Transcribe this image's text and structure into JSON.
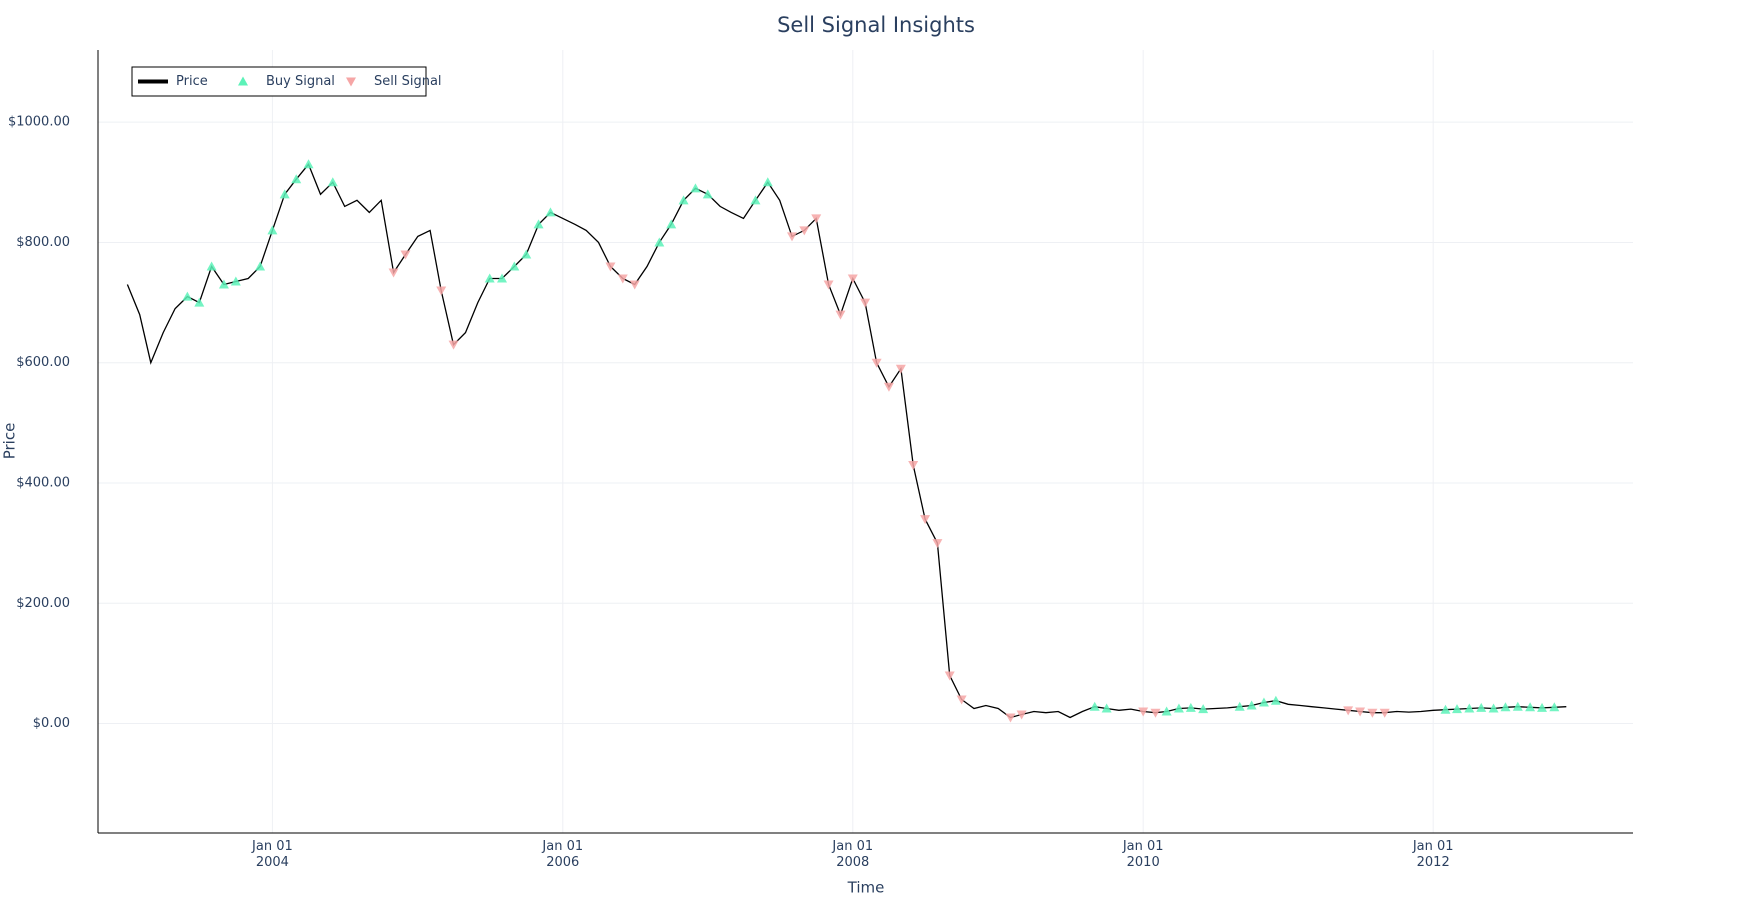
{
  "chart_data": {
    "type": "line",
    "title": "Sell Signal Insights",
    "xlabel": "Time",
    "ylabel": "Price",
    "xlim": [
      "2002-10-19",
      "2013-05-18"
    ],
    "xticks": [
      {
        "value": "2004-01-01",
        "label": "Jan 01\n2004"
      },
      {
        "value": "2006-01-01",
        "label": "Jan 01\n2006"
      },
      {
        "value": "2008-01-01",
        "label": "Jan 01\n2008"
      },
      {
        "value": "2010-01-01",
        "label": "Jan 01\n2010"
      },
      {
        "value": "2012-01-01",
        "label": "Jan 01\n2012"
      }
    ],
    "ylim": [
      -182,
      1120
    ],
    "yticks": [
      {
        "value": 0,
        "label": "$0.00"
      },
      {
        "value": 200,
        "label": "$200.00"
      },
      {
        "value": 400,
        "label": "$400.00"
      },
      {
        "value": 600,
        "label": "$600.00"
      },
      {
        "value": 800,
        "label": "$800.00"
      },
      {
        "value": 1000,
        "label": "$1000.00"
      }
    ],
    "grid": true,
    "legend": "top-left",
    "series": [
      {
        "name": "Price",
        "mode": "lines",
        "color": "#000000",
        "x": [
          "2003-01",
          "2003-02",
          "2003-03",
          "2003-04",
          "2003-05",
          "2003-06",
          "2003-07",
          "2003-08",
          "2003-09",
          "2003-10",
          "2003-11",
          "2003-12",
          "2004-01",
          "2004-02",
          "2004-03",
          "2004-04",
          "2004-05",
          "2004-06",
          "2004-07",
          "2004-08",
          "2004-09",
          "2004-10",
          "2004-11",
          "2004-12",
          "2005-01",
          "2005-02",
          "2005-03",
          "2005-04",
          "2005-05",
          "2005-06",
          "2005-07",
          "2005-08",
          "2005-09",
          "2005-10",
          "2005-11",
          "2005-12",
          "2006-01",
          "2006-02",
          "2006-03",
          "2006-04",
          "2006-05",
          "2006-06",
          "2006-07",
          "2006-08",
          "2006-09",
          "2006-10",
          "2006-11",
          "2006-12",
          "2007-01",
          "2007-02",
          "2007-03",
          "2007-04",
          "2007-05",
          "2007-06",
          "2007-07",
          "2007-08",
          "2007-09",
          "2007-10",
          "2007-11",
          "2007-12",
          "2008-01",
          "2008-02",
          "2008-03",
          "2008-04",
          "2008-05",
          "2008-06",
          "2008-07",
          "2008-08",
          "2008-09",
          "2008-10",
          "2008-11",
          "2008-12",
          "2009-01",
          "2009-02",
          "2009-03",
          "2009-04",
          "2009-05",
          "2009-06",
          "2009-07",
          "2009-08",
          "2009-09",
          "2009-10",
          "2009-11",
          "2009-12",
          "2010-01",
          "2010-02",
          "2010-03",
          "2010-04",
          "2010-05",
          "2010-06",
          "2010-07",
          "2010-08",
          "2010-09",
          "2010-10",
          "2010-11",
          "2010-12",
          "2011-01",
          "2011-02",
          "2011-03",
          "2011-04",
          "2011-05",
          "2011-06",
          "2011-07",
          "2011-08",
          "2011-09",
          "2011-10",
          "2011-11",
          "2011-12",
          "2012-01",
          "2012-02",
          "2012-03",
          "2012-04",
          "2012-05",
          "2012-06",
          "2012-07",
          "2012-08",
          "2012-09",
          "2012-10",
          "2012-11",
          "2012-12"
        ],
        "values": [
          730,
          680,
          600,
          650,
          690,
          710,
          700,
          760,
          730,
          735,
          740,
          760,
          820,
          880,
          905,
          930,
          880,
          900,
          860,
          870,
          850,
          870,
          750,
          780,
          810,
          820,
          720,
          630,
          650,
          700,
          740,
          740,
          760,
          780,
          830,
          850,
          840,
          830,
          820,
          800,
          760,
          740,
          730,
          760,
          800,
          830,
          870,
          890,
          880,
          860,
          850,
          840,
          870,
          900,
          870,
          810,
          820,
          840,
          730,
          680,
          740,
          700,
          600,
          560,
          590,
          430,
          340,
          300,
          80,
          40,
          25,
          30,
          25,
          10,
          15,
          20,
          18,
          20,
          10,
          20,
          28,
          25,
          22,
          24,
          20,
          18,
          20,
          25,
          26,
          24,
          25,
          26,
          28,
          30,
          35,
          38,
          32,
          30,
          28,
          26,
          24,
          22,
          20,
          18,
          18,
          20,
          19,
          20,
          22,
          23,
          24,
          25,
          26,
          25,
          27,
          28,
          27,
          26,
          27,
          28
        ]
      },
      {
        "name": "Buy Signal",
        "mode": "markers",
        "marker": "triangle-up",
        "color": "#5cf2b8",
        "x": [
          "2003-06",
          "2003-07",
          "2003-08",
          "2003-09",
          "2003-10",
          "2003-12",
          "2004-01",
          "2004-02",
          "2004-03",
          "2004-04",
          "2004-06",
          "2005-07",
          "2005-08",
          "2005-09",
          "2005-10",
          "2005-11",
          "2005-12",
          "2006-09",
          "2006-10",
          "2006-11",
          "2006-12",
          "2007-01",
          "2007-05",
          "2007-06",
          "2009-09",
          "2009-10",
          "2010-03",
          "2010-04",
          "2010-05",
          "2010-06",
          "2010-09",
          "2010-10",
          "2010-11",
          "2010-12",
          "2012-02",
          "2012-03",
          "2012-04",
          "2012-05",
          "2012-06",
          "2012-07",
          "2012-08",
          "2012-09",
          "2012-10",
          "2012-11"
        ],
        "values": [
          710,
          700,
          760,
          730,
          735,
          760,
          820,
          880,
          905,
          930,
          900,
          740,
          740,
          760,
          780,
          830,
          850,
          800,
          830,
          870,
          890,
          880,
          870,
          900,
          28,
          25,
          20,
          25,
          26,
          24,
          28,
          30,
          35,
          38,
          23,
          24,
          25,
          26,
          25,
          27,
          28,
          27,
          26,
          27
        ]
      },
      {
        "name": "Sell Signal",
        "mode": "markers",
        "marker": "triangle-down",
        "color": "#f6a6a6",
        "x": [
          "2004-11",
          "2004-12",
          "2005-03",
          "2005-04",
          "2006-05",
          "2006-06",
          "2006-07",
          "2007-08",
          "2007-09",
          "2007-10",
          "2007-11",
          "2007-12",
          "2008-01",
          "2008-02",
          "2008-03",
          "2008-04",
          "2008-05",
          "2008-06",
          "2008-07",
          "2008-08",
          "2008-09",
          "2008-10",
          "2009-02",
          "2009-03",
          "2010-01",
          "2010-02",
          "2011-06",
          "2011-07",
          "2011-08",
          "2011-09"
        ],
        "values": [
          750,
          780,
          720,
          630,
          760,
          740,
          730,
          810,
          820,
          840,
          730,
          680,
          740,
          700,
          600,
          560,
          590,
          430,
          340,
          300,
          80,
          40,
          10,
          15,
          20,
          18,
          22,
          20,
          18,
          18
        ]
      }
    ]
  }
}
